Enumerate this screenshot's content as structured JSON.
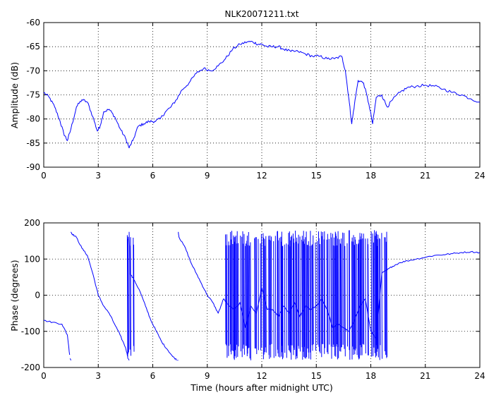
{
  "colors": {
    "series": "#0000ff",
    "axes": "#000000",
    "background": "#ffffff"
  },
  "chart_data": [
    {
      "type": "line",
      "title": "NLK20071211.txt",
      "xlabel": "",
      "ylabel": "Amplitude (dB)",
      "xlim": [
        0,
        24
      ],
      "ylim": [
        -90,
        -60
      ],
      "xticks": [
        0,
        3,
        6,
        9,
        12,
        15,
        18,
        21,
        24
      ],
      "yticks": [
        -90,
        -85,
        -80,
        -75,
        -70,
        -65,
        -60
      ],
      "grid": true,
      "series": [
        {
          "color": "#0000ff",
          "x": [
            0,
            0.3,
            0.6,
            0.9,
            1.1,
            1.3,
            1.5,
            1.8,
            2.1,
            2.4,
            2.7,
            2.95,
            3.1,
            3.3,
            3.6,
            3.9,
            4.2,
            4.5,
            4.7,
            4.9,
            5.2,
            5.5,
            5.8,
            6.1,
            6.4,
            6.7,
            7.0,
            7.3,
            7.6,
            8.0,
            8.4,
            8.8,
            9.2,
            9.6,
            10.0,
            10.4,
            10.8,
            11.2,
            11.5,
            11.8,
            12.0,
            12.3,
            12.6,
            12.9,
            13.2,
            13.6,
            14.0,
            14.4,
            14.8,
            15.2,
            15.6,
            16.0,
            16.4,
            16.6,
            16.8,
            16.95,
            17.1,
            17.3,
            17.6,
            17.9,
            18.1,
            18.3,
            18.6,
            18.9,
            19.2,
            19.6,
            20.0,
            20.5,
            21.0,
            21.5,
            22.0,
            22.5,
            23.0,
            23.5,
            24.0
          ],
          "values": [
            -74.5,
            -75.5,
            -77.5,
            -80.5,
            -83,
            -84.5,
            -82,
            -77.5,
            -76,
            -76.5,
            -79.5,
            -82.5,
            -81.5,
            -78.5,
            -78,
            -79.5,
            -82,
            -84,
            -86,
            -84.5,
            -81.5,
            -81,
            -80.5,
            -80.5,
            -80,
            -78.5,
            -77.5,
            -76,
            -74,
            -72.5,
            -70.5,
            -69.5,
            -70,
            -69,
            -67.5,
            -65.5,
            -64.5,
            -64,
            -64,
            -64.5,
            -64.5,
            -65,
            -65,
            -65,
            -65.5,
            -66,
            -66,
            -66.5,
            -67,
            -67,
            -67.5,
            -67.5,
            -67,
            -70,
            -76,
            -81,
            -77,
            -72,
            -72.5,
            -77,
            -81,
            -75.5,
            -75,
            -77.5,
            -76,
            -74.5,
            -73.5,
            -73.2,
            -73,
            -73.2,
            -73.8,
            -74.5,
            -75,
            -75.8,
            -76.5
          ]
        }
      ]
    },
    {
      "type": "line",
      "title": "",
      "xlabel": "Time (hours after midnight UTC)",
      "ylabel": "Phase (degrees)",
      "xlim": [
        0,
        24
      ],
      "ylim": [
        -200,
        200
      ],
      "xticks": [
        0,
        3,
        6,
        9,
        12,
        15,
        18,
        21,
        24
      ],
      "yticks": [
        -200,
        -100,
        0,
        100,
        200
      ],
      "grid": true,
      "series": [
        {
          "color": "#0000ff",
          "x": [
            0,
            0.5,
            1.0,
            1.3,
            1.45,
            1.5,
            1.55,
            1.8,
            2.1,
            2.4,
            2.7,
            3.0,
            3.3,
            3.6,
            3.9,
            4.2,
            4.5,
            4.65,
            4.7,
            4.75,
            5.0,
            5.3,
            5.6,
            5.9,
            6.2,
            6.5,
            6.8,
            7.1,
            7.35,
            7.4,
            7.45,
            7.8,
            8.1,
            8.4,
            8.7,
            9.0,
            9.3,
            9.6,
            9.9,
            10.2,
            10.5,
            10.8,
            11.1,
            11.4,
            11.7,
            12.0,
            12.3,
            12.6,
            12.9,
            13.2,
            13.5,
            13.8,
            14.1,
            14.4,
            14.7,
            15.0,
            15.3,
            15.6,
            15.9,
            16.2,
            16.5,
            16.8,
            17.1,
            17.4,
            17.7,
            18.0,
            18.3,
            18.6,
            18.9,
            19.2,
            19.6,
            20.0,
            20.5,
            21.0,
            21.5,
            22.0,
            22.5,
            23.0,
            23.5,
            24.0
          ],
          "values": [
            -70,
            -75,
            -80,
            -110,
            -175,
            175,
            170,
            160,
            130,
            110,
            60,
            0,
            -30,
            -50,
            -80,
            -110,
            -145,
            -175,
            175,
            60,
            40,
            10,
            -30,
            -70,
            -100,
            -130,
            -150,
            -170,
            -180,
            175,
            160,
            130,
            90,
            60,
            30,
            0,
            -20,
            -50,
            -10,
            -30,
            -40,
            -20,
            -90,
            -30,
            -50,
            20,
            -40,
            -40,
            -60,
            -30,
            -50,
            -20,
            -60,
            -30,
            -40,
            -30,
            -10,
            -40,
            -90,
            -80,
            -90,
            -100,
            -70,
            -30,
            -10,
            -100,
            -120,
            60,
            70,
            80,
            90,
            95,
            100,
            105,
            110,
            112,
            115,
            118,
            120,
            118
          ]
        }
      ],
      "noise_bursts": [
        {
          "from": 4.55,
          "to": 4.95,
          "low": -180,
          "high": 180
        },
        {
          "from": 10.0,
          "to": 18.9,
          "low": -180,
          "high": 180
        }
      ]
    }
  ]
}
